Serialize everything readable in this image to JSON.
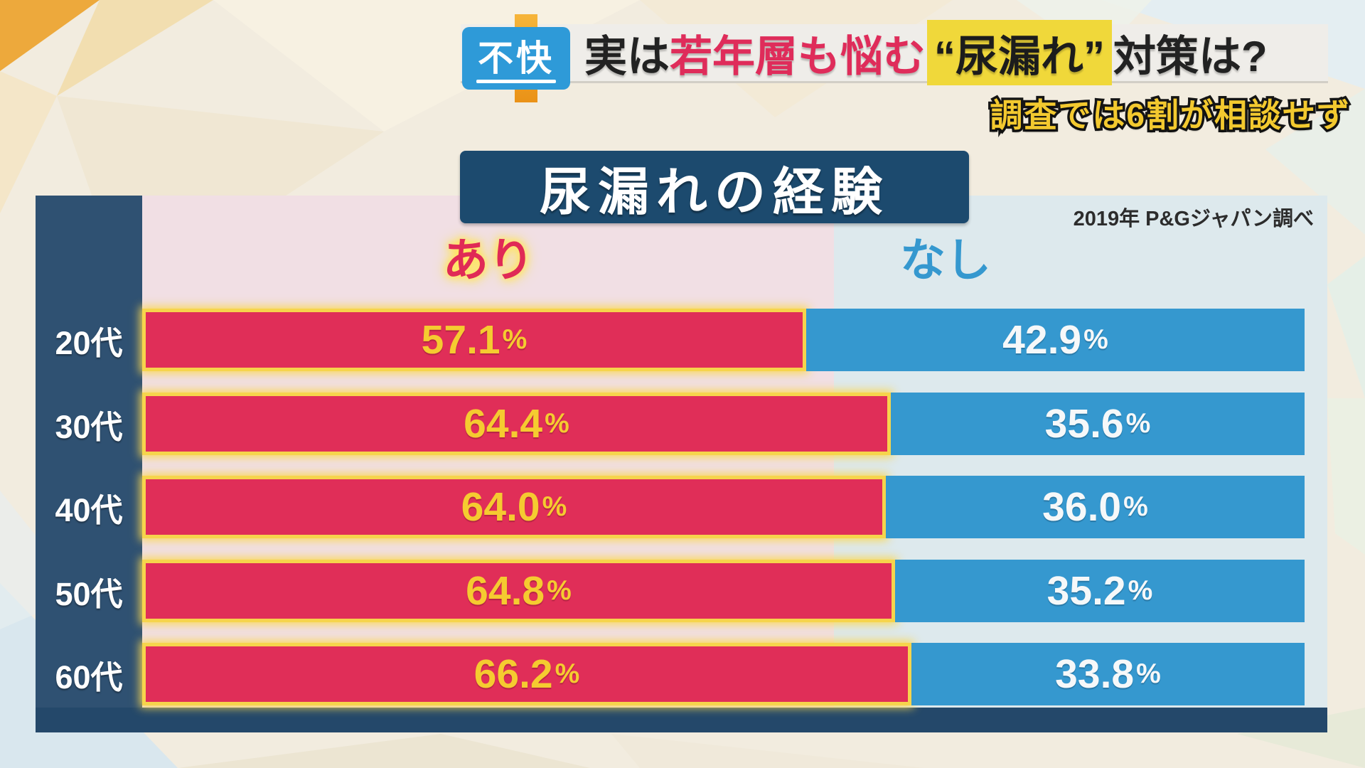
{
  "banner": {
    "badge": "不快",
    "headline": {
      "prefix": "実は",
      "emphasis": "若年層も悩む",
      "highlight": "“尿漏れ”",
      "suffix": "対策は?"
    },
    "subtitle": "調査では6割が相談せず"
  },
  "chart_data": {
    "type": "bar",
    "orientation": "horizontal_stacked",
    "title": "尿漏れの経験",
    "source_note": "2019年 P&Gジャパン調べ",
    "categories": [
      "20代",
      "30代",
      "40代",
      "50代",
      "60代"
    ],
    "series": [
      {
        "name": "あり",
        "color": "#E02E58",
        "label_color": "#F5CB30",
        "values": [
          57.1,
          64.4,
          64.0,
          64.8,
          66.2
        ]
      },
      {
        "name": "なし",
        "color": "#3598CF",
        "label_color": "#FFFFFF",
        "values": [
          42.9,
          35.6,
          36.0,
          35.2,
          33.8
        ]
      }
    ],
    "value_suffix": "%",
    "xlim": [
      0,
      100
    ],
    "legend_position": "top",
    "grid": false
  },
  "colors": {
    "background_cream": "#F2ECDF",
    "frame_navy": "#2F5172",
    "title_navy": "#1C4A6E",
    "yes_column_bg": "#F1DFE4",
    "no_column_bg": "#DDE9ED",
    "yes_bar": "#E02E58",
    "no_bar": "#3598CF",
    "bar_glow_yellow": "#F6D44C",
    "badge_blue": "#2E9AD8",
    "highlight_yellow": "#F0D83A",
    "subtitle_yellow": "#F3C92F",
    "headline_red": "#DF2C5A"
  }
}
